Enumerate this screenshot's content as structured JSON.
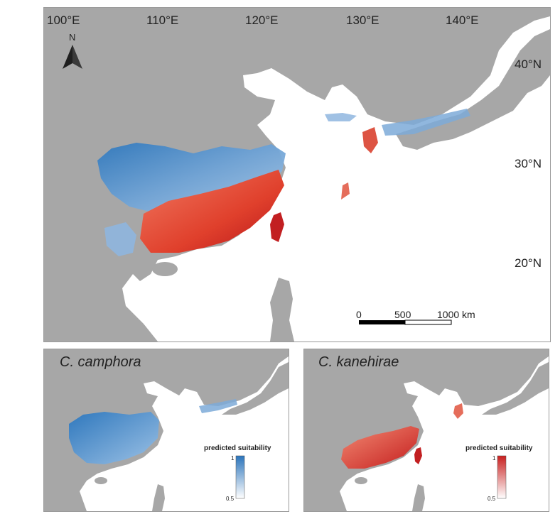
{
  "main_map": {
    "lon_labels": [
      "100°E",
      "110°E",
      "120°E",
      "130°E",
      "140°E"
    ],
    "lat_labels": [
      "40°N",
      "30°N",
      "20°N"
    ],
    "north_label": "N",
    "scale_labels": [
      "0",
      "500",
      "1000 km"
    ]
  },
  "insets": [
    {
      "title": "C. camphora",
      "legend_title": "predicted suitability",
      "legend_max": "1",
      "legend_min": "0.5"
    },
    {
      "title": "C. kanehirae",
      "legend_title": "predicted suitability",
      "legend_max": "1",
      "legend_min": "0.5"
    }
  ],
  "colors": {
    "land": "#a7a7a7",
    "sea": "#ffffff",
    "camphora": "#3f86c6",
    "kanehirae": "#d7301f"
  }
}
